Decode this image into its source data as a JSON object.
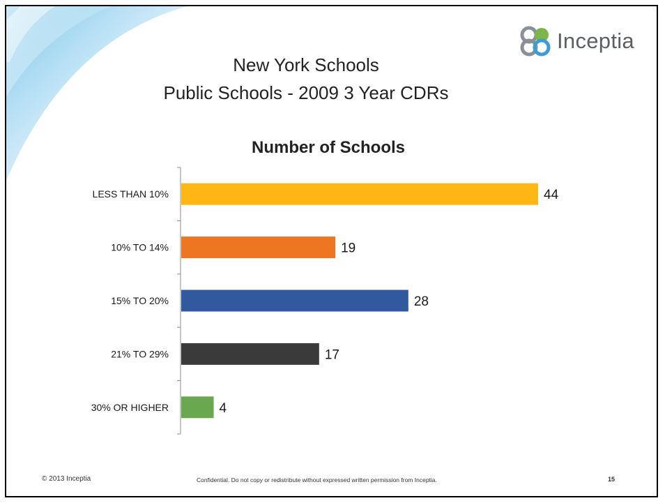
{
  "slide": {
    "title_line1": "New York Schools",
    "title_line2": "Public Schools - 2009 3 Year CDRs",
    "logo_text": "Inceptia",
    "footer_left": "© 2013 Inceptia",
    "footer_center": "Confidential. Do not copy or redistribute without expressed written permission from Inceptia.",
    "page_number": "15"
  },
  "colors": {
    "swoosh_light": "#d8eef8",
    "swoosh_mid": "#6cc0ea",
    "logo_green": "#7ab648",
    "logo_blue": "#3d9bd6",
    "logo_gray": "#8a9099"
  },
  "chart_data": {
    "type": "bar",
    "orientation": "horizontal",
    "title": "Number of  Schools",
    "categories": [
      "LESS THAN 10%",
      "10% TO 14%",
      "15% TO 20%",
      "21% TO 29%",
      "30% OR HIGHER"
    ],
    "values": [
      44,
      19,
      28,
      17,
      4
    ],
    "colors": [
      "#ffb716",
      "#ee7623",
      "#30599f",
      "#3a3a3a",
      "#6aa84f"
    ],
    "xlim": [
      0,
      44
    ],
    "grid": false,
    "legend": "none",
    "data_labels": true
  }
}
